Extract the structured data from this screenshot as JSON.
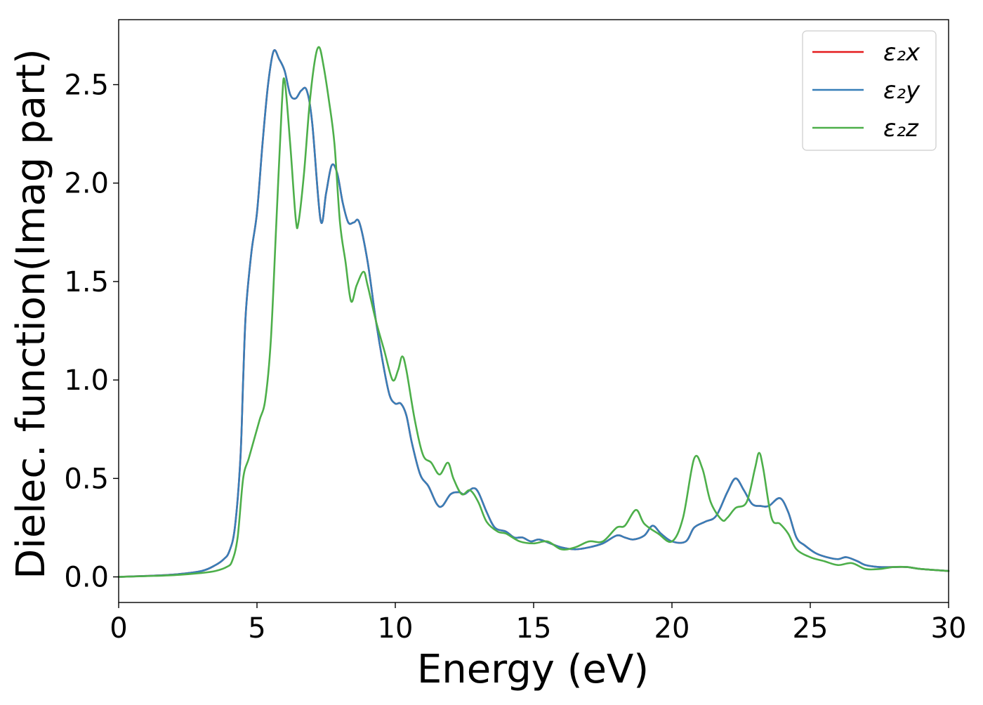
{
  "chart_data": {
    "type": "line",
    "xlabel": "Energy (eV)",
    "ylabel": "Dielec. function(Imag part)",
    "xlim": [
      0,
      30
    ],
    "ylim": [
      -0.13,
      2.83
    ],
    "x_ticks": [
      0,
      5,
      10,
      15,
      20,
      25,
      30
    ],
    "x_tick_labels": [
      "0",
      "5",
      "10",
      "15",
      "20",
      "25",
      "30"
    ],
    "y_ticks": [
      0.0,
      0.5,
      1.0,
      1.5,
      2.0,
      2.5
    ],
    "y_tick_labels": [
      "0.0",
      "0.5",
      "1.0",
      "1.5",
      "2.0",
      "2.5"
    ],
    "grid": false,
    "legend_position": "top-right",
    "legend_labels": [
      "ε₂x",
      "ε₂y",
      "ε₂z"
    ],
    "series": [
      {
        "name": "ε₂x",
        "color": "#e41a1c",
        "points": [
          [
            0,
            0
          ],
          [
            1,
            0.005
          ],
          [
            2,
            0.012
          ],
          [
            3,
            0.03
          ],
          [
            3.5,
            0.06
          ],
          [
            3.8,
            0.09
          ],
          [
            4.0,
            0.13
          ],
          [
            4.2,
            0.25
          ],
          [
            4.4,
            0.6
          ],
          [
            4.5,
            1.0
          ],
          [
            4.6,
            1.35
          ],
          [
            4.8,
            1.65
          ],
          [
            5.0,
            1.85
          ],
          [
            5.2,
            2.2
          ],
          [
            5.4,
            2.5
          ],
          [
            5.6,
            2.67
          ],
          [
            5.8,
            2.63
          ],
          [
            6.0,
            2.57
          ],
          [
            6.2,
            2.45
          ],
          [
            6.4,
            2.43
          ],
          [
            6.6,
            2.47
          ],
          [
            6.8,
            2.47
          ],
          [
            7.0,
            2.3
          ],
          [
            7.3,
            1.81
          ],
          [
            7.5,
            1.95
          ],
          [
            7.7,
            2.09
          ],
          [
            7.9,
            2.05
          ],
          [
            8.1,
            1.9
          ],
          [
            8.3,
            1.8
          ],
          [
            8.5,
            1.8
          ],
          [
            8.7,
            1.8
          ],
          [
            9.0,
            1.6
          ],
          [
            9.3,
            1.3
          ],
          [
            9.6,
            1.05
          ],
          [
            9.8,
            0.92
          ],
          [
            10.0,
            0.88
          ],
          [
            10.2,
            0.88
          ],
          [
            10.4,
            0.82
          ],
          [
            10.6,
            0.68
          ],
          [
            10.9,
            0.52
          ],
          [
            11.2,
            0.46
          ],
          [
            11.5,
            0.37
          ],
          [
            11.7,
            0.36
          ],
          [
            12.0,
            0.42
          ],
          [
            12.3,
            0.43
          ],
          [
            12.5,
            0.42
          ],
          [
            12.8,
            0.45
          ],
          [
            13.0,
            0.43
          ],
          [
            13.3,
            0.33
          ],
          [
            13.6,
            0.25
          ],
          [
            14.0,
            0.23
          ],
          [
            14.3,
            0.2
          ],
          [
            14.6,
            0.2
          ],
          [
            14.9,
            0.18
          ],
          [
            15.2,
            0.19
          ],
          [
            15.6,
            0.17
          ],
          [
            16.0,
            0.15
          ],
          [
            16.5,
            0.14
          ],
          [
            17.0,
            0.15
          ],
          [
            17.5,
            0.17
          ],
          [
            18.0,
            0.21
          ],
          [
            18.3,
            0.2
          ],
          [
            18.6,
            0.19
          ],
          [
            19.0,
            0.21
          ],
          [
            19.3,
            0.26
          ],
          [
            19.6,
            0.22
          ],
          [
            20.0,
            0.18
          ],
          [
            20.5,
            0.18
          ],
          [
            20.8,
            0.25
          ],
          [
            21.2,
            0.28
          ],
          [
            21.6,
            0.31
          ],
          [
            22.0,
            0.43
          ],
          [
            22.3,
            0.5
          ],
          [
            22.6,
            0.44
          ],
          [
            22.9,
            0.37
          ],
          [
            23.2,
            0.36
          ],
          [
            23.5,
            0.36
          ],
          [
            23.9,
            0.4
          ],
          [
            24.2,
            0.33
          ],
          [
            24.5,
            0.2
          ],
          [
            24.8,
            0.16
          ],
          [
            25.2,
            0.12
          ],
          [
            25.6,
            0.1
          ],
          [
            26.0,
            0.09
          ],
          [
            26.3,
            0.1
          ],
          [
            26.7,
            0.08
          ],
          [
            27.0,
            0.06
          ],
          [
            27.5,
            0.05
          ],
          [
            28.0,
            0.05
          ],
          [
            28.5,
            0.05
          ],
          [
            29.0,
            0.04
          ],
          [
            30,
            0.03
          ]
        ]
      },
      {
        "name": "ε₂y",
        "color": "#377eb8",
        "points": [
          [
            0,
            0
          ],
          [
            1,
            0.005
          ],
          [
            2,
            0.012
          ],
          [
            3,
            0.03
          ],
          [
            3.5,
            0.06
          ],
          [
            3.8,
            0.09
          ],
          [
            4.0,
            0.13
          ],
          [
            4.2,
            0.25
          ],
          [
            4.4,
            0.6
          ],
          [
            4.5,
            1.0
          ],
          [
            4.6,
            1.35
          ],
          [
            4.8,
            1.65
          ],
          [
            5.0,
            1.85
          ],
          [
            5.2,
            2.2
          ],
          [
            5.4,
            2.5
          ],
          [
            5.6,
            2.67
          ],
          [
            5.8,
            2.63
          ],
          [
            6.0,
            2.57
          ],
          [
            6.2,
            2.45
          ],
          [
            6.4,
            2.43
          ],
          [
            6.6,
            2.47
          ],
          [
            6.8,
            2.47
          ],
          [
            7.0,
            2.3
          ],
          [
            7.3,
            1.81
          ],
          [
            7.5,
            1.95
          ],
          [
            7.7,
            2.09
          ],
          [
            7.9,
            2.05
          ],
          [
            8.1,
            1.9
          ],
          [
            8.3,
            1.8
          ],
          [
            8.5,
            1.8
          ],
          [
            8.7,
            1.8
          ],
          [
            9.0,
            1.6
          ],
          [
            9.3,
            1.3
          ],
          [
            9.6,
            1.05
          ],
          [
            9.8,
            0.92
          ],
          [
            10.0,
            0.88
          ],
          [
            10.2,
            0.88
          ],
          [
            10.4,
            0.82
          ],
          [
            10.6,
            0.68
          ],
          [
            10.9,
            0.52
          ],
          [
            11.2,
            0.46
          ],
          [
            11.5,
            0.37
          ],
          [
            11.7,
            0.36
          ],
          [
            12.0,
            0.42
          ],
          [
            12.3,
            0.43
          ],
          [
            12.5,
            0.42
          ],
          [
            12.8,
            0.45
          ],
          [
            13.0,
            0.43
          ],
          [
            13.3,
            0.33
          ],
          [
            13.6,
            0.25
          ],
          [
            14.0,
            0.23
          ],
          [
            14.3,
            0.2
          ],
          [
            14.6,
            0.2
          ],
          [
            14.9,
            0.18
          ],
          [
            15.2,
            0.19
          ],
          [
            15.6,
            0.17
          ],
          [
            16.0,
            0.15
          ],
          [
            16.5,
            0.14
          ],
          [
            17.0,
            0.15
          ],
          [
            17.5,
            0.17
          ],
          [
            18.0,
            0.21
          ],
          [
            18.3,
            0.2
          ],
          [
            18.6,
            0.19
          ],
          [
            19.0,
            0.21
          ],
          [
            19.3,
            0.26
          ],
          [
            19.6,
            0.22
          ],
          [
            20.0,
            0.18
          ],
          [
            20.5,
            0.18
          ],
          [
            20.8,
            0.25
          ],
          [
            21.2,
            0.28
          ],
          [
            21.6,
            0.31
          ],
          [
            22.0,
            0.43
          ],
          [
            22.3,
            0.5
          ],
          [
            22.6,
            0.44
          ],
          [
            22.9,
            0.37
          ],
          [
            23.2,
            0.36
          ],
          [
            23.5,
            0.36
          ],
          [
            23.9,
            0.4
          ],
          [
            24.2,
            0.33
          ],
          [
            24.5,
            0.2
          ],
          [
            24.8,
            0.16
          ],
          [
            25.2,
            0.12
          ],
          [
            25.6,
            0.1
          ],
          [
            26.0,
            0.09
          ],
          [
            26.3,
            0.1
          ],
          [
            26.7,
            0.08
          ],
          [
            27.0,
            0.06
          ],
          [
            27.5,
            0.05
          ],
          [
            28.0,
            0.05
          ],
          [
            28.5,
            0.05
          ],
          [
            29.0,
            0.04
          ],
          [
            30,
            0.03
          ]
        ]
      },
      {
        "name": "ε₂z",
        "color": "#4daf4a",
        "points": [
          [
            0,
            0
          ],
          [
            1,
            0.004
          ],
          [
            2,
            0.009
          ],
          [
            3,
            0.02
          ],
          [
            3.5,
            0.03
          ],
          [
            3.9,
            0.05
          ],
          [
            4.1,
            0.08
          ],
          [
            4.3,
            0.2
          ],
          [
            4.5,
            0.5
          ],
          [
            4.7,
            0.6
          ],
          [
            4.9,
            0.7
          ],
          [
            5.1,
            0.8
          ],
          [
            5.3,
            0.9
          ],
          [
            5.5,
            1.2
          ],
          [
            5.7,
            1.8
          ],
          [
            5.9,
            2.4
          ],
          [
            6.0,
            2.52
          ],
          [
            6.2,
            2.2
          ],
          [
            6.4,
            1.82
          ],
          [
            6.5,
            1.8
          ],
          [
            6.7,
            2.05
          ],
          [
            6.9,
            2.4
          ],
          [
            7.1,
            2.63
          ],
          [
            7.25,
            2.69
          ],
          [
            7.4,
            2.6
          ],
          [
            7.6,
            2.42
          ],
          [
            7.8,
            2.2
          ],
          [
            8.0,
            1.8
          ],
          [
            8.2,
            1.6
          ],
          [
            8.4,
            1.4
          ],
          [
            8.6,
            1.48
          ],
          [
            8.85,
            1.55
          ],
          [
            9.0,
            1.48
          ],
          [
            9.3,
            1.3
          ],
          [
            9.6,
            1.15
          ],
          [
            9.9,
            1.0
          ],
          [
            10.1,
            1.05
          ],
          [
            10.25,
            1.12
          ],
          [
            10.4,
            1.05
          ],
          [
            10.7,
            0.8
          ],
          [
            11.0,
            0.62
          ],
          [
            11.3,
            0.58
          ],
          [
            11.6,
            0.52
          ],
          [
            11.9,
            0.58
          ],
          [
            12.1,
            0.5
          ],
          [
            12.4,
            0.42
          ],
          [
            12.7,
            0.44
          ],
          [
            13.0,
            0.38
          ],
          [
            13.3,
            0.28
          ],
          [
            13.7,
            0.23
          ],
          [
            14.0,
            0.22
          ],
          [
            14.5,
            0.18
          ],
          [
            15.0,
            0.17
          ],
          [
            15.5,
            0.18
          ],
          [
            16.0,
            0.14
          ],
          [
            16.5,
            0.15
          ],
          [
            17.0,
            0.18
          ],
          [
            17.5,
            0.18
          ],
          [
            18.0,
            0.25
          ],
          [
            18.3,
            0.26
          ],
          [
            18.7,
            0.34
          ],
          [
            19.0,
            0.27
          ],
          [
            19.5,
            0.22
          ],
          [
            20.0,
            0.18
          ],
          [
            20.4,
            0.3
          ],
          [
            20.8,
            0.6
          ],
          [
            21.1,
            0.55
          ],
          [
            21.4,
            0.38
          ],
          [
            21.8,
            0.29
          ],
          [
            22.0,
            0.3
          ],
          [
            22.3,
            0.35
          ],
          [
            22.7,
            0.38
          ],
          [
            23.0,
            0.55
          ],
          [
            23.15,
            0.63
          ],
          [
            23.3,
            0.55
          ],
          [
            23.6,
            0.3
          ],
          [
            23.9,
            0.27
          ],
          [
            24.2,
            0.22
          ],
          [
            24.5,
            0.14
          ],
          [
            25.0,
            0.1
          ],
          [
            25.5,
            0.08
          ],
          [
            26.0,
            0.06
          ],
          [
            26.5,
            0.07
          ],
          [
            27.0,
            0.04
          ],
          [
            27.5,
            0.04
          ],
          [
            28.0,
            0.05
          ],
          [
            28.5,
            0.05
          ],
          [
            29.0,
            0.04
          ],
          [
            30,
            0.03
          ]
        ]
      }
    ]
  }
}
